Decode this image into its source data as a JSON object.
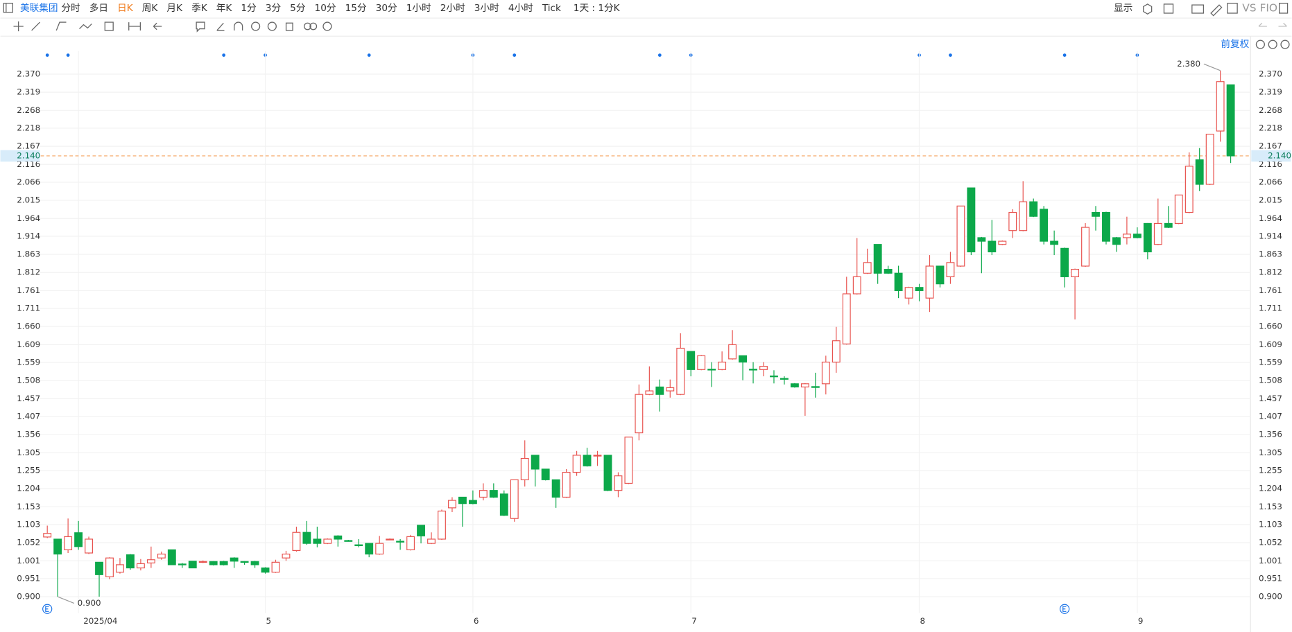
{
  "toolbar": {
    "symbol": "美联集团",
    "periods": [
      "分时",
      "多日",
      "日K",
      "周K",
      "月K",
      "季K",
      "年K",
      "1分",
      "3分",
      "5分",
      "10分",
      "15分",
      "30分",
      "1小时",
      "2小时",
      "3小时",
      "4小时",
      "Tick"
    ],
    "active_period": "日K",
    "interval": "1天 : 1分K",
    "display": "显示",
    "compare": "VS FIO"
  },
  "chart_data": {
    "type": "candlestick",
    "adjust": "前复权",
    "categories": [
      null,
      null,
      null,
      "2025/04",
      null,
      null,
      null,
      null,
      null,
      null,
      null,
      null,
      null,
      null,
      null,
      null,
      null,
      null,
      null,
      null,
      null,
      "5",
      null,
      null,
      null,
      null,
      null,
      null,
      null,
      null,
      null,
      null,
      null,
      null,
      null,
      null,
      null,
      null,
      null,
      null,
      null,
      "6",
      null,
      null,
      null,
      null,
      null,
      null,
      null,
      null,
      null,
      null,
      null,
      null,
      null,
      null,
      null,
      null,
      null,
      null,
      null,
      null,
      "7",
      null,
      null,
      null,
      null,
      null,
      null,
      null,
      null,
      null,
      null,
      null,
      null,
      null,
      null,
      null,
      null,
      null,
      null,
      null,
      null,
      null,
      "8",
      null,
      null,
      null,
      null,
      null,
      null,
      null,
      null,
      null,
      null,
      null,
      null,
      null,
      null,
      null,
      null,
      null,
      null,
      null,
      null,
      "9",
      null,
      null,
      null,
      null,
      null,
      null,
      null,
      null,
      null
    ],
    "open": [
      1.068,
      1.062,
      1.032,
      1.08,
      1.023,
      0.997,
      0.956,
      0.969,
      1.018,
      0.981,
      0.995,
      1.009,
      1.032,
      0.992,
      1.0,
      0.997,
      0.999,
      0.999,
      1.009,
      0.999,
      0.999,
      0.981,
      0.969,
      1.009,
      1.03,
      1.081,
      1.062,
      1.05,
      1.071,
      1.058,
      1.046,
      1.05,
      1.02,
      1.061,
      1.056,
      1.032,
      1.101,
      1.05,
      1.062,
      1.15,
      1.18,
      1.171,
      1.18,
      1.199,
      1.189,
      1.12,
      1.229,
      1.298,
      1.259,
      1.229,
      1.18,
      1.25,
      1.298,
      1.297,
      1.298,
      1.199,
      1.219,
      1.361,
      1.469,
      1.49,
      1.479,
      1.469,
      1.59,
      1.539,
      1.54,
      1.539,
      1.569,
      1.578,
      1.54,
      1.539,
      1.521,
      1.514,
      1.499,
      1.49,
      1.491,
      1.499,
      1.56,
      1.611,
      1.752,
      1.81,
      1.891,
      1.821,
      1.81,
      1.74,
      1.77,
      1.74,
      1.83,
      1.8,
      1.83,
      2.05,
      1.91,
      1.9,
      1.891,
      1.93,
      1.93,
      2.011,
      1.99,
      1.9,
      1.88,
      1.8,
      1.83,
      1.981,
      1.981,
      1.91,
      1.91,
      1.92,
      1.95,
      1.891,
      1.95,
      1.95,
      1.981,
      2.129,
      2.06,
      2.21,
      2.34
    ],
    "close": [
      1.078,
      1.02,
      1.069,
      1.041,
      1.062,
      0.962,
      1.009,
      0.99,
      0.981,
      0.993,
      1.004,
      1.02,
      0.99,
      0.99,
      0.981,
      0.999,
      0.99,
      0.99,
      1.0,
      0.997,
      0.99,
      0.969,
      0.997,
      1.02,
      1.081,
      1.05,
      1.05,
      1.062,
      1.062,
      1.057,
      1.045,
      1.02,
      1.05,
      1.062,
      1.055,
      1.069,
      1.071,
      1.062,
      1.141,
      1.171,
      1.162,
      1.162,
      1.199,
      1.18,
      1.129,
      1.229,
      1.289,
      1.259,
      1.229,
      1.18,
      1.25,
      1.298,
      1.268,
      1.298,
      1.199,
      1.24,
      1.349,
      1.469,
      1.479,
      1.469,
      1.488,
      1.599,
      1.539,
      1.578,
      1.539,
      1.56,
      1.609,
      1.56,
      1.539,
      1.548,
      1.52,
      1.513,
      1.49,
      1.499,
      1.49,
      1.56,
      1.62,
      1.752,
      1.8,
      1.84,
      1.81,
      1.81,
      1.761,
      1.77,
      1.761,
      1.83,
      1.78,
      1.84,
      1.999,
      1.87,
      1.9,
      1.87,
      1.9,
      1.981,
      2.011,
      1.97,
      1.9,
      1.891,
      1.8,
      1.821,
      1.939,
      1.97,
      1.9,
      1.891,
      1.92,
      1.91,
      1.87,
      1.95,
      1.939,
      2.03,
      2.111,
      2.06,
      2.201,
      2.349,
      2.14
    ],
    "high": [
      1.1,
      1.062,
      1.12,
      1.113,
      1.069,
      0.997,
      1.011,
      1.009,
      1.02,
      1.006,
      1.041,
      1.027,
      1.032,
      0.995,
      1.0,
      1.002,
      1.0,
      1.001,
      1.011,
      1.0,
      1.001,
      0.983,
      1.004,
      1.029,
      1.097,
      1.113,
      1.097,
      1.064,
      1.073,
      1.06,
      1.062,
      1.05,
      1.071,
      1.064,
      1.062,
      1.074,
      1.101,
      1.081,
      1.145,
      1.18,
      1.18,
      1.199,
      1.219,
      1.219,
      1.199,
      1.229,
      1.34,
      1.298,
      1.259,
      1.229,
      1.259,
      1.31,
      1.319,
      1.31,
      1.298,
      1.25,
      1.349,
      1.497,
      1.548,
      1.511,
      1.511,
      1.641,
      1.59,
      1.58,
      1.56,
      1.59,
      1.65,
      1.578,
      1.56,
      1.56,
      1.537,
      1.52,
      1.501,
      1.501,
      1.53,
      1.578,
      1.659,
      1.8,
      1.909,
      1.879,
      1.891,
      1.831,
      1.831,
      1.772,
      1.78,
      1.861,
      1.831,
      1.87,
      1.999,
      2.05,
      1.912,
      1.96,
      1.902,
      1.99,
      2.069,
      2.02,
      1.999,
      1.93,
      1.882,
      1.823,
      1.951,
      1.999,
      1.983,
      1.912,
      1.969,
      1.939,
      1.951,
      2.02,
      1.999,
      2.03,
      2.15,
      2.162,
      2.201,
      2.38,
      2.34
    ],
    "low": [
      1.065,
      0.9,
      1.023,
      1.032,
      1.02,
      0.9,
      0.949,
      0.965,
      0.976,
      0.974,
      0.981,
      1.004,
      0.99,
      0.981,
      0.981,
      0.995,
      0.988,
      0.988,
      0.981,
      0.99,
      0.981,
      0.965,
      0.967,
      1.001,
      1.027,
      1.046,
      1.039,
      1.048,
      1.041,
      1.055,
      1.039,
      1.011,
      1.018,
      1.059,
      1.032,
      1.03,
      1.05,
      1.048,
      1.06,
      1.138,
      1.097,
      1.16,
      1.171,
      1.178,
      1.127,
      1.111,
      1.21,
      1.21,
      1.227,
      1.15,
      1.178,
      1.24,
      1.266,
      1.268,
      1.197,
      1.18,
      1.217,
      1.34,
      1.467,
      1.421,
      1.46,
      1.467,
      1.52,
      1.537,
      1.49,
      1.537,
      1.567,
      1.509,
      1.5,
      1.52,
      1.5,
      1.497,
      1.488,
      1.409,
      1.46,
      1.469,
      1.53,
      1.609,
      1.75,
      1.808,
      1.78,
      1.808,
      1.74,
      1.722,
      1.731,
      1.701,
      1.77,
      1.78,
      1.828,
      1.861,
      1.81,
      1.861,
      1.889,
      1.909,
      1.928,
      1.968,
      1.891,
      1.861,
      1.77,
      1.68,
      1.828,
      1.93,
      1.891,
      1.87,
      1.891,
      1.908,
      1.849,
      1.889,
      1.937,
      1.948,
      1.979,
      2.041,
      2.058,
      2.18,
      2.12
    ],
    "up_color": "#e8534f",
    "down_color": "#0ca84a",
    "ylim": [
      0.854,
      2.435
    ],
    "yticks": [
      {
        "value": 0.9,
        "label": "0.900"
      },
      0.951,
      1.001,
      1.052,
      1.103,
      1.153,
      1.204,
      1.255,
      1.305,
      1.356,
      1.407,
      1.457,
      1.508,
      1.559,
      1.609,
      {
        "value": 1.66,
        "label": "1.660"
      },
      1.711,
      1.761,
      1.812,
      1.863,
      1.914,
      1.964,
      2.015,
      2.066,
      2.116,
      2.167,
      2.218,
      2.268,
      2.319,
      {
        "value": 2.37,
        "label": "2.370"
      }
    ],
    "grid": true,
    "last_price": {
      "value": 2.14,
      "label": "2.140",
      "color": "#f5a25d"
    },
    "max_label": "2.380",
    "min_label": "0.900"
  }
}
